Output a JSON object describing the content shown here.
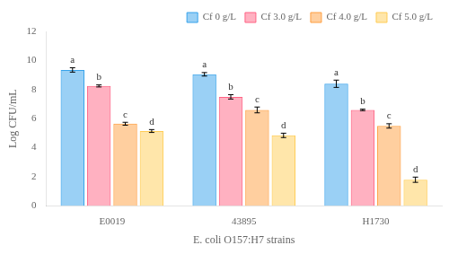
{
  "chart_data": {
    "type": "bar",
    "categories": [
      "E0019",
      "43895",
      "H1730"
    ],
    "series": [
      {
        "name": "Cf 0 g/L",
        "values": [
          9.35,
          9.05,
          8.4
        ],
        "errors": [
          0.15,
          0.12,
          0.25
        ],
        "letters": [
          "a",
          "a",
          "a"
        ]
      },
      {
        "name": "Cf 3.0 g/L",
        "values": [
          8.25,
          7.5,
          6.6
        ],
        "errors": [
          0.07,
          0.15,
          0.05
        ],
        "letters": [
          "b",
          "b",
          "b"
        ]
      },
      {
        "name": "Cf 4.0 g/L",
        "values": [
          5.65,
          6.6,
          5.5
        ],
        "errors": [
          0.1,
          0.2,
          0.15
        ],
        "letters": [
          "c",
          "c",
          "c"
        ]
      },
      {
        "name": "Cf 5.0 g/L",
        "values": [
          5.15,
          4.85,
          1.8
        ],
        "errors": [
          0.1,
          0.15,
          0.18
        ],
        "letters": [
          "d",
          "d",
          "d"
        ]
      }
    ],
    "ylabel": "Log CFU/mL",
    "xlabel": "E. coli O157:H7 strains",
    "ylim": [
      0,
      12
    ],
    "yticks": [
      0,
      2,
      4,
      6,
      8,
      10,
      12
    ],
    "grid": false,
    "legend": "upper right"
  }
}
